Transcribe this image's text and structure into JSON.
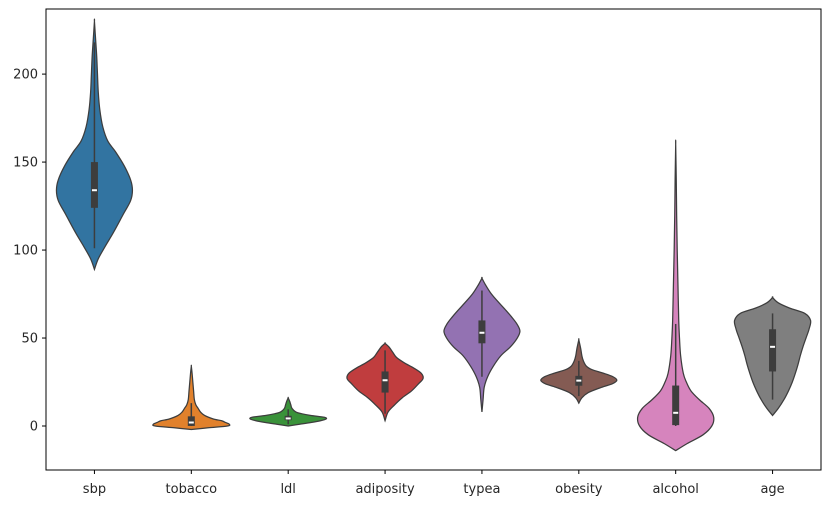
{
  "chart_data": {
    "type": "violin",
    "title": "",
    "xlabel": "",
    "ylabel": "",
    "ylim": [
      -25,
      237
    ],
    "y_ticks": [
      0,
      50,
      100,
      150,
      200
    ],
    "grid": false,
    "legend": "none",
    "categories": [
      "sbp",
      "tobacco",
      "ldl",
      "adiposity",
      "typea",
      "obesity",
      "alcohol",
      "age"
    ],
    "series": [
      {
        "category": "sbp",
        "color": "#3274a1",
        "min": 101,
        "q1": 124,
        "median": 134,
        "q3": 150,
        "max": 218,
        "density": [
          [
            89,
            0
          ],
          [
            95,
            0.1
          ],
          [
            102,
            0.28
          ],
          [
            110,
            0.5
          ],
          [
            120,
            0.75
          ],
          [
            128,
            0.95
          ],
          [
            134,
            1
          ],
          [
            140,
            0.95
          ],
          [
            148,
            0.78
          ],
          [
            156,
            0.55
          ],
          [
            162,
            0.35
          ],
          [
            170,
            0.22
          ],
          [
            180,
            0.14
          ],
          [
            190,
            0.1
          ],
          [
            200,
            0.08
          ],
          [
            210,
            0.06
          ],
          [
            220,
            0.03
          ],
          [
            230,
            0
          ]
        ]
      },
      {
        "category": "tobacco",
        "color": "#e1812c",
        "min": 0,
        "q1": 0.05,
        "median": 2,
        "q3": 5.5,
        "max": 13,
        "density": [
          [
            -2,
            0
          ],
          [
            -1,
            0.45
          ],
          [
            0,
            0.95
          ],
          [
            1,
            1
          ],
          [
            2,
            0.9
          ],
          [
            3,
            0.8
          ],
          [
            4,
            0.58
          ],
          [
            6,
            0.35
          ],
          [
            8,
            0.24
          ],
          [
            10,
            0.18
          ],
          [
            12,
            0.12
          ],
          [
            15,
            0.08
          ],
          [
            20,
            0.06
          ],
          [
            25,
            0.04
          ],
          [
            30,
            0.02
          ],
          [
            34,
            0
          ]
        ]
      },
      {
        "category": "ldl",
        "color": "#3a923a",
        "min": 1,
        "q1": 3.3,
        "median": 4.3,
        "q3": 5.8,
        "max": 9.5,
        "density": [
          [
            0,
            0
          ],
          [
            1,
            0.3
          ],
          [
            2,
            0.6
          ],
          [
            3,
            0.85
          ],
          [
            4,
            1
          ],
          [
            5,
            0.95
          ],
          [
            6,
            0.6
          ],
          [
            7,
            0.35
          ],
          [
            8,
            0.2
          ],
          [
            10,
            0.1
          ],
          [
            12,
            0.07
          ],
          [
            14,
            0.04
          ],
          [
            16,
            0
          ]
        ]
      },
      {
        "category": "adiposity",
        "color": "#c03d3e",
        "min": 7,
        "q1": 19,
        "median": 26,
        "q3": 31,
        "max": 43,
        "density": [
          [
            3,
            0
          ],
          [
            8,
            0.08
          ],
          [
            12,
            0.25
          ],
          [
            16,
            0.45
          ],
          [
            20,
            0.7
          ],
          [
            24,
            0.88
          ],
          [
            27,
            1
          ],
          [
            30,
            0.95
          ],
          [
            33,
            0.75
          ],
          [
            36,
            0.5
          ],
          [
            39,
            0.3
          ],
          [
            42,
            0.2
          ],
          [
            45,
            0.1
          ],
          [
            47,
            0
          ]
        ]
      },
      {
        "category": "typea",
        "color": "#9372b2",
        "min": 28,
        "q1": 47,
        "median": 53,
        "q3": 60,
        "max": 77,
        "density": [
          [
            8,
            0
          ],
          [
            15,
            0.03
          ],
          [
            22,
            0.06
          ],
          [
            28,
            0.15
          ],
          [
            34,
            0.3
          ],
          [
            40,
            0.5
          ],
          [
            45,
            0.75
          ],
          [
            50,
            0.93
          ],
          [
            54,
            1
          ],
          [
            58,
            0.92
          ],
          [
            62,
            0.78
          ],
          [
            66,
            0.62
          ],
          [
            70,
            0.45
          ],
          [
            75,
            0.25
          ],
          [
            80,
            0.1
          ],
          [
            84,
            0
          ]
        ]
      },
      {
        "category": "obesity",
        "color": "#845b53",
        "min": 17,
        "q1": 22.9,
        "median": 25.8,
        "q3": 28.5,
        "max": 37,
        "density": [
          [
            13,
            0
          ],
          [
            16,
            0.08
          ],
          [
            19,
            0.25
          ],
          [
            22,
            0.6
          ],
          [
            24,
            0.88
          ],
          [
            26,
            1
          ],
          [
            28,
            0.9
          ],
          [
            30,
            0.65
          ],
          [
            32,
            0.35
          ],
          [
            34,
            0.2
          ],
          [
            37,
            0.12
          ],
          [
            40,
            0.08
          ],
          [
            44,
            0.05
          ],
          [
            49,
            0
          ]
        ]
      },
      {
        "category": "alcohol",
        "color": "#d684bd",
        "min": 0,
        "q1": 0.5,
        "median": 7.5,
        "q3": 23,
        "max": 58,
        "density": [
          [
            -14,
            0
          ],
          [
            -10,
            0.3
          ],
          [
            -5,
            0.72
          ],
          [
            0,
            0.95
          ],
          [
            5,
            1
          ],
          [
            10,
            0.88
          ],
          [
            15,
            0.62
          ],
          [
            20,
            0.4
          ],
          [
            25,
            0.28
          ],
          [
            30,
            0.2
          ],
          [
            40,
            0.13
          ],
          [
            50,
            0.1
          ],
          [
            60,
            0.08
          ],
          [
            80,
            0.06
          ],
          [
            100,
            0.04
          ],
          [
            120,
            0.025
          ],
          [
            140,
            0.015
          ],
          [
            160,
            0
          ]
        ]
      },
      {
        "category": "age",
        "color": "#7f7f7f",
        "min": 15,
        "q1": 31,
        "median": 45,
        "q3": 55,
        "max": 64,
        "density": [
          [
            6,
            0
          ],
          [
            10,
            0.15
          ],
          [
            15,
            0.3
          ],
          [
            20,
            0.42
          ],
          [
            25,
            0.52
          ],
          [
            30,
            0.6
          ],
          [
            35,
            0.67
          ],
          [
            40,
            0.73
          ],
          [
            45,
            0.8
          ],
          [
            50,
            0.88
          ],
          [
            55,
            0.96
          ],
          [
            60,
            1
          ],
          [
            64,
            0.85
          ],
          [
            67,
            0.45
          ],
          [
            70,
            0.15
          ],
          [
            73,
            0
          ]
        ]
      }
    ]
  }
}
